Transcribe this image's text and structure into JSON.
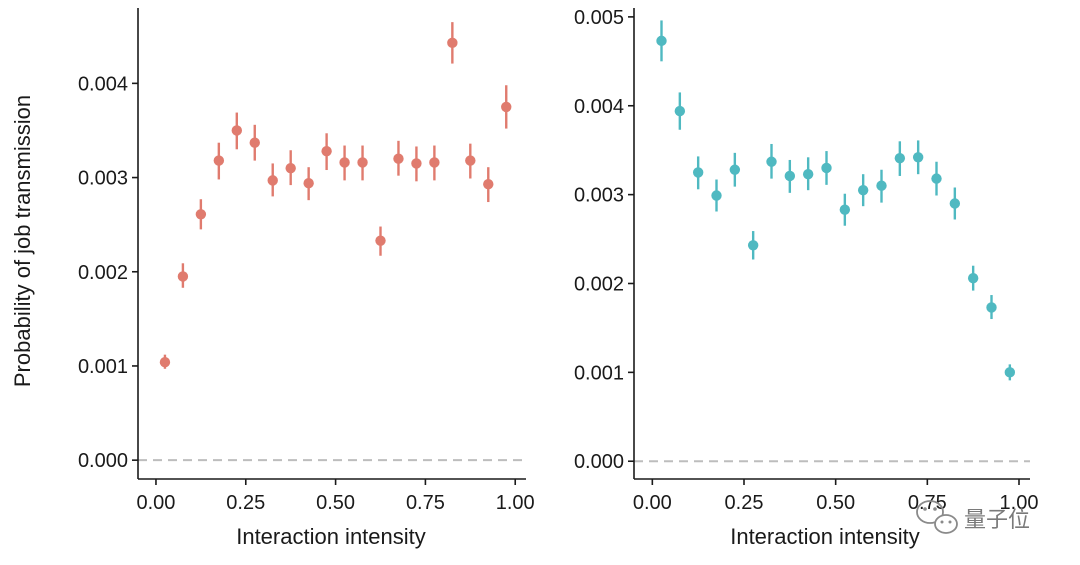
{
  "figure": {
    "ylabel": "Probability of job transmission",
    "watermark_text": "量子位"
  },
  "colors": {
    "axis": "#1a1a1a",
    "reference_line": "#bdbdbd",
    "left_series": "#e07b6e",
    "right_series": "#4fb9c1"
  },
  "chart_data": [
    {
      "type": "scatter",
      "xlabel": "Interaction intensity",
      "ylabel": "Probability of job transmission",
      "xlim": [
        -0.05,
        1.03
      ],
      "ylim": [
        -0.0002,
        0.0048
      ],
      "x_ticks": [
        "0.00",
        "0.25",
        "0.50",
        "0.75",
        "1.00"
      ],
      "y_ticks": [
        "0.000",
        "0.001",
        "0.002",
        "0.003",
        "0.004"
      ],
      "reference_line_y": 0,
      "error_bars": true,
      "grid": false,
      "series": [
        {
          "color": "#e07b6e",
          "points": [
            {
              "x": 0.025,
              "y": 0.00104,
              "lo": 0.00097,
              "hi": 0.00112
            },
            {
              "x": 0.075,
              "y": 0.00195,
              "lo": 0.00183,
              "hi": 0.00209
            },
            {
              "x": 0.125,
              "y": 0.00261,
              "lo": 0.00245,
              "hi": 0.00277
            },
            {
              "x": 0.175,
              "y": 0.00318,
              "lo": 0.00298,
              "hi": 0.00337
            },
            {
              "x": 0.225,
              "y": 0.0035,
              "lo": 0.0033,
              "hi": 0.00369
            },
            {
              "x": 0.275,
              "y": 0.00337,
              "lo": 0.00318,
              "hi": 0.00356
            },
            {
              "x": 0.325,
              "y": 0.00297,
              "lo": 0.0028,
              "hi": 0.00315
            },
            {
              "x": 0.375,
              "y": 0.0031,
              "lo": 0.00292,
              "hi": 0.00329
            },
            {
              "x": 0.425,
              "y": 0.00294,
              "lo": 0.00276,
              "hi": 0.00311
            },
            {
              "x": 0.475,
              "y": 0.00328,
              "lo": 0.00308,
              "hi": 0.00347
            },
            {
              "x": 0.525,
              "y": 0.00316,
              "lo": 0.00297,
              "hi": 0.00334
            },
            {
              "x": 0.575,
              "y": 0.00316,
              "lo": 0.00297,
              "hi": 0.00334
            },
            {
              "x": 0.625,
              "y": 0.00233,
              "lo": 0.00217,
              "hi": 0.00248
            },
            {
              "x": 0.675,
              "y": 0.0032,
              "lo": 0.00302,
              "hi": 0.00339
            },
            {
              "x": 0.725,
              "y": 0.00315,
              "lo": 0.00296,
              "hi": 0.00333
            },
            {
              "x": 0.775,
              "y": 0.00316,
              "lo": 0.00297,
              "hi": 0.00334
            },
            {
              "x": 0.825,
              "y": 0.00443,
              "lo": 0.00421,
              "hi": 0.00465
            },
            {
              "x": 0.875,
              "y": 0.00318,
              "lo": 0.00299,
              "hi": 0.00336
            },
            {
              "x": 0.925,
              "y": 0.00293,
              "lo": 0.00274,
              "hi": 0.00311
            },
            {
              "x": 0.975,
              "y": 0.00375,
              "lo": 0.00352,
              "hi": 0.00398
            }
          ]
        }
      ]
    },
    {
      "type": "scatter",
      "xlabel": "Interaction intensity",
      "ylabel": "",
      "xlim": [
        -0.05,
        1.03
      ],
      "ylim": [
        -0.0002,
        0.0051
      ],
      "x_ticks": [
        "0.00",
        "0.25",
        "0.50",
        "0.75",
        "1.00"
      ],
      "y_ticks": [
        "0.000",
        "0.001",
        "0.002",
        "0.003",
        "0.004",
        "0.005"
      ],
      "reference_line_y": 0,
      "error_bars": true,
      "grid": false,
      "series": [
        {
          "color": "#4fb9c1",
          "points": [
            {
              "x": 0.025,
              "y": 0.00473,
              "lo": 0.0045,
              "hi": 0.00496
            },
            {
              "x": 0.075,
              "y": 0.00394,
              "lo": 0.00373,
              "hi": 0.00415
            },
            {
              "x": 0.125,
              "y": 0.00325,
              "lo": 0.00306,
              "hi": 0.00343
            },
            {
              "x": 0.175,
              "y": 0.00299,
              "lo": 0.00281,
              "hi": 0.00317
            },
            {
              "x": 0.225,
              "y": 0.00328,
              "lo": 0.00309,
              "hi": 0.00347
            },
            {
              "x": 0.275,
              "y": 0.00243,
              "lo": 0.00227,
              "hi": 0.00259
            },
            {
              "x": 0.325,
              "y": 0.00337,
              "lo": 0.00318,
              "hi": 0.00357
            },
            {
              "x": 0.375,
              "y": 0.00321,
              "lo": 0.00302,
              "hi": 0.00339
            },
            {
              "x": 0.425,
              "y": 0.00323,
              "lo": 0.00305,
              "hi": 0.00342
            },
            {
              "x": 0.475,
              "y": 0.0033,
              "lo": 0.00311,
              "hi": 0.00349
            },
            {
              "x": 0.525,
              "y": 0.00283,
              "lo": 0.00265,
              "hi": 0.00301
            },
            {
              "x": 0.575,
              "y": 0.00305,
              "lo": 0.00287,
              "hi": 0.00323
            },
            {
              "x": 0.625,
              "y": 0.0031,
              "lo": 0.00291,
              "hi": 0.00328
            },
            {
              "x": 0.675,
              "y": 0.00341,
              "lo": 0.00321,
              "hi": 0.0036
            },
            {
              "x": 0.725,
              "y": 0.00342,
              "lo": 0.00323,
              "hi": 0.00361
            },
            {
              "x": 0.775,
              "y": 0.00318,
              "lo": 0.00299,
              "hi": 0.00337
            },
            {
              "x": 0.825,
              "y": 0.0029,
              "lo": 0.00272,
              "hi": 0.00308
            },
            {
              "x": 0.875,
              "y": 0.00206,
              "lo": 0.00192,
              "hi": 0.0022
            },
            {
              "x": 0.925,
              "y": 0.00173,
              "lo": 0.0016,
              "hi": 0.00187
            },
            {
              "x": 0.975,
              "y": 0.001,
              "lo": 0.00091,
              "hi": 0.00109
            }
          ]
        }
      ]
    }
  ]
}
